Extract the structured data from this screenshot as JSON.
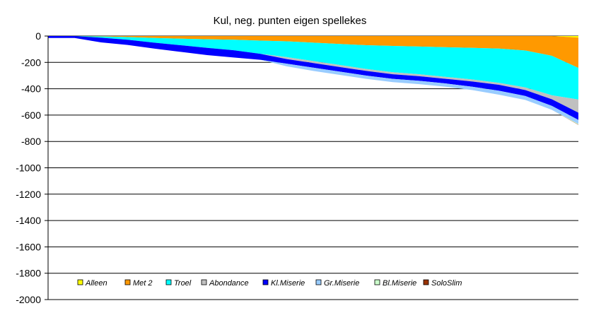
{
  "chart_data": {
    "type": "area",
    "title": "Kul, neg. punten eigen spellekes",
    "xlabel": "",
    "ylabel": "",
    "ylim": [
      -2000,
      0
    ],
    "yticks": [
      0,
      -200,
      -400,
      -600,
      -800,
      -1000,
      -1200,
      -1400,
      -1600,
      -1800,
      -2000
    ],
    "grid": true,
    "legend_position": "bottom-inside",
    "x": [
      0,
      5,
      10,
      15,
      20,
      25,
      30,
      35,
      40,
      45,
      50,
      55,
      60,
      65,
      70,
      75,
      80,
      85,
      90,
      95,
      100
    ],
    "series": [
      {
        "name": "Alleen",
        "color": "#ffff00",
        "values": [
          0,
          0,
          0,
          0,
          0,
          0,
          0,
          0,
          0,
          0,
          0,
          0,
          0,
          0,
          0,
          0,
          0,
          0,
          0,
          0,
          -12
        ]
      },
      {
        "name": "Met 2",
        "color": "#ff9900",
        "values": [
          0,
          0,
          -3,
          -8,
          -15,
          -20,
          -25,
          -28,
          -35,
          -40,
          -50,
          -60,
          -70,
          -75,
          -80,
          -85,
          -90,
          -95,
          -110,
          -150,
          -230
        ]
      },
      {
        "name": "Troel",
        "color": "#00ffff",
        "values": [
          0,
          0,
          -10,
          -20,
          -35,
          -50,
          -65,
          -80,
          -100,
          -120,
          -140,
          -160,
          -180,
          -200,
          -210,
          -225,
          -240,
          -260,
          -280,
          -300,
          -240
        ]
      },
      {
        "name": "Abondance",
        "color": "#c0c0c0",
        "values": [
          0,
          0,
          0,
          0,
          0,
          0,
          0,
          0,
          0,
          -15,
          -15,
          -15,
          -15,
          -15,
          -15,
          -15,
          -15,
          -15,
          -20,
          -30,
          -100
        ]
      },
      {
        "name": "Kl.Miserie",
        "color": "#0000ff",
        "values": [
          -15,
          -15,
          -35,
          -40,
          -45,
          -50,
          -55,
          -55,
          -45,
          -35,
          -35,
          -35,
          -35,
          -35,
          -35,
          -35,
          -40,
          -45,
          -45,
          -50,
          -55
        ]
      },
      {
        "name": "Gr.Miserie",
        "color": "#99ccff",
        "values": [
          0,
          0,
          0,
          0,
          0,
          0,
          0,
          0,
          0,
          -20,
          -25,
          -25,
          -25,
          -25,
          -25,
          -25,
          -25,
          -30,
          -30,
          -30,
          -30
        ]
      },
      {
        "name": "Bl.Miserie",
        "color": "#ccffcc",
        "values": [
          0,
          0,
          0,
          0,
          0,
          0,
          0,
          0,
          0,
          0,
          0,
          0,
          0,
          0,
          0,
          0,
          0,
          0,
          0,
          0,
          -5
        ]
      },
      {
        "name": "SoloSlim",
        "color": "#993300",
        "values": [
          0,
          0,
          0,
          0,
          0,
          0,
          0,
          0,
          0,
          0,
          0,
          0,
          0,
          0,
          0,
          0,
          0,
          0,
          0,
          0,
          -2
        ]
      }
    ]
  }
}
